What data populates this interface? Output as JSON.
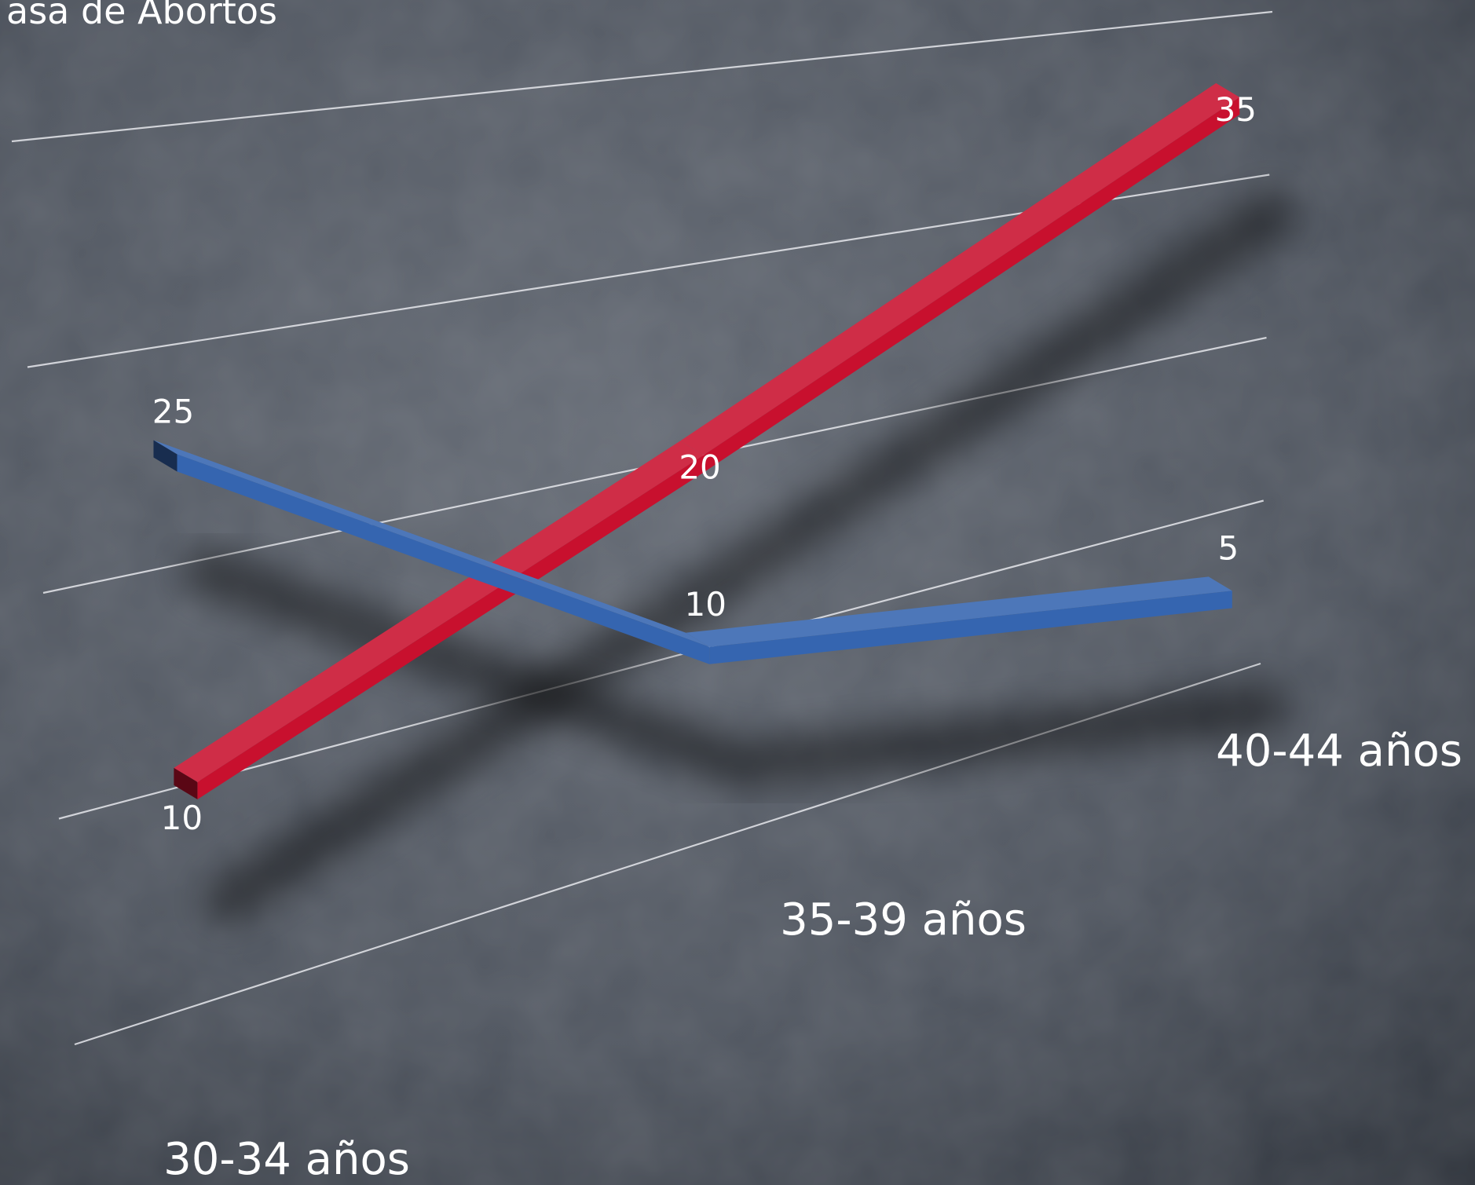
{
  "chart_data": {
    "type": "line",
    "title": "asa de Abortos",
    "categories": [
      "30-34 años",
      "35-39 años",
      "40-44 años"
    ],
    "series": [
      {
        "values": [
          10,
          20,
          35
        ],
        "color": "#c8102e"
      },
      {
        "values": [
          25,
          10,
          5
        ],
        "color": "#3565b0"
      }
    ],
    "ylim": [
      0,
      40
    ],
    "grid": true,
    "legend": "none"
  }
}
